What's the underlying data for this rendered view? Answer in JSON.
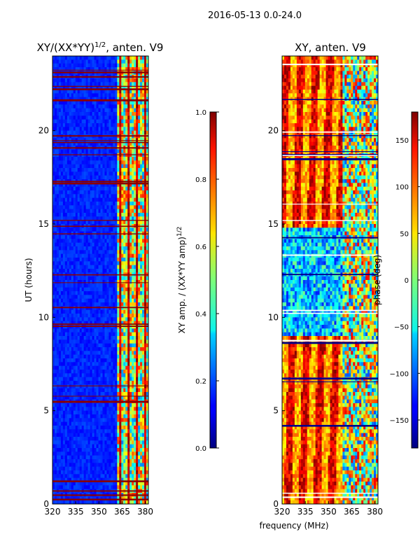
{
  "suptitle": "2016-05-13 0.0-24.0",
  "chart_data": [
    {
      "type": "heatmap",
      "title": "XY/(XX*YY)^1/2, anten. V9",
      "title_main": "XY/(XX*YY)",
      "title_exp": "1/2",
      "title_tail": ", anten. V9",
      "xlabel": "",
      "ylabel": "UT (hours)",
      "xlim": [
        320,
        382
      ],
      "ylim": [
        0,
        24
      ],
      "xticks": [
        320,
        335,
        350,
        365,
        380
      ],
      "yticks": [
        0,
        5,
        10,
        15,
        20
      ],
      "colorbar": {
        "label": "XY amp. / (XX*YY amp)^1/2",
        "label_main": "XY amp. / (XX*YY amp)",
        "label_exp": "1/2",
        "range": [
          0.0,
          1.0
        ],
        "ticks": [
          "0.0",
          "0.2",
          "0.4",
          "0.6",
          "0.8",
          "1.0"
        ],
        "tick_values": [
          0.0,
          0.2,
          0.4,
          0.6,
          0.8,
          1.0
        ]
      }
    },
    {
      "type": "heatmap",
      "title": "XY, anten. V9",
      "xlabel": "frequency (MHz)",
      "ylabel": "",
      "xlim": [
        320,
        382
      ],
      "ylim": [
        0,
        24
      ],
      "xticks": [
        320,
        335,
        350,
        365,
        380
      ],
      "yticks": [
        0,
        5,
        10,
        15,
        20
      ],
      "colorbar": {
        "label": "phase (deg)",
        "range": [
          -180,
          180
        ],
        "ticks": [
          "−150",
          "−100",
          "−50",
          "0",
          "50",
          "100",
          "150"
        ],
        "tick_values": [
          -150,
          -100,
          -50,
          0,
          50,
          100,
          150
        ]
      }
    }
  ]
}
